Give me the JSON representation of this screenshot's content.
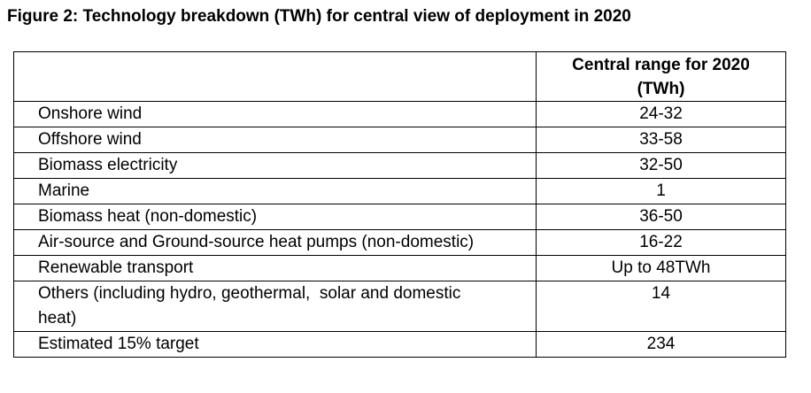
{
  "title": "Figure 2: Technology breakdown (TWh) for central view of deployment in 2020",
  "table": {
    "header": "Central range for 2020 (TWh)",
    "rows": [
      [
        "Onshore wind",
        "24-32"
      ],
      [
        "Offshore wind",
        "33-58"
      ],
      [
        "Biomass electricity",
        "32-50"
      ],
      [
        "Marine",
        "1"
      ],
      [
        "Biomass heat (non-domestic)",
        "36-50"
      ],
      [
        "Air-source and Ground-source heat pumps (non-domestic)",
        "16-22"
      ],
      [
        "Renewable transport",
        "Up to 48TWh"
      ],
      [
        "Others (including hydro, geothermal,  solar and domestic heat)",
        "14"
      ],
      [
        "Estimated 15% target",
        "234"
      ]
    ]
  }
}
